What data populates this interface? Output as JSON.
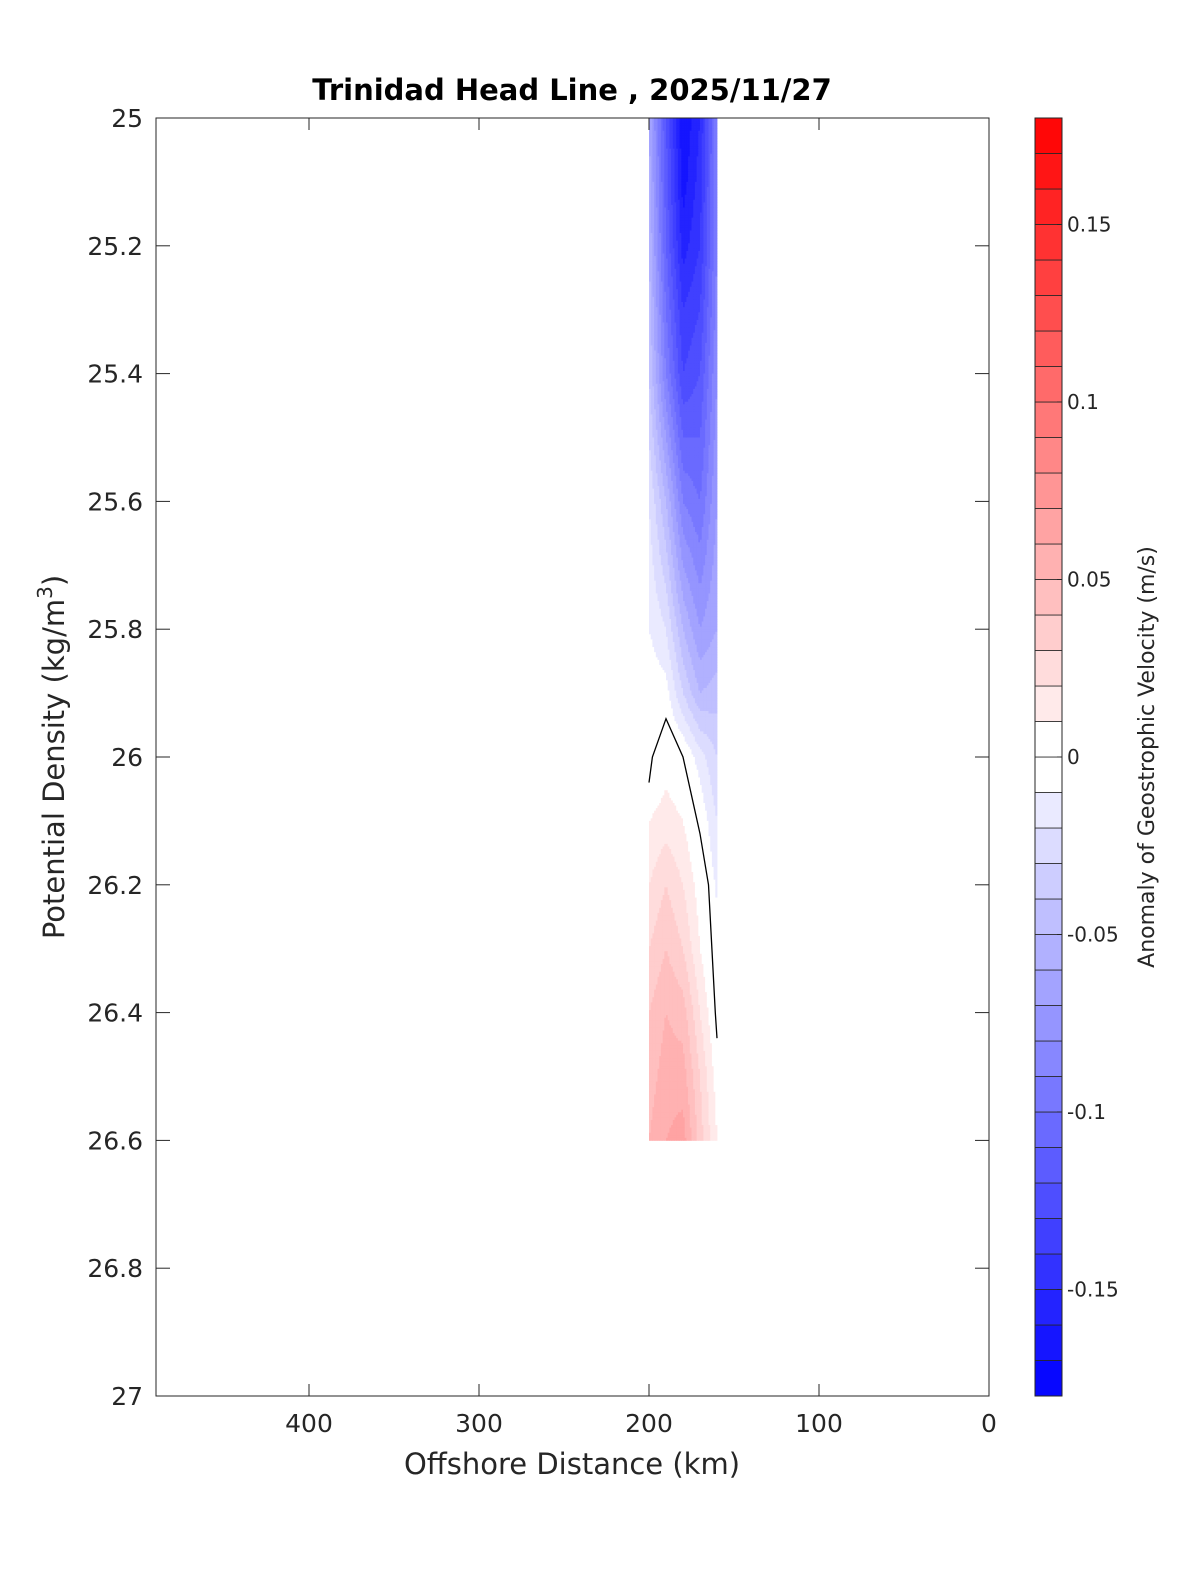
{
  "chart_data": {
    "type": "heatmap",
    "subtype": "filled-contour",
    "title": "Trinidad Head Line , 2025/11/27",
    "xlabel": "Offshore Distance (km)",
    "ylabel_main": "Potential Density (kg/m",
    "ylabel_sup": "3",
    "ylabel_close": ")",
    "xlim": [
      490,
      0
    ],
    "x_reversed": true,
    "ylim": [
      25,
      27
    ],
    "y_reversed": true,
    "xticks": [
      400,
      300,
      200,
      100,
      0
    ],
    "xtick_labels": [
      "400",
      "300",
      "200",
      "100",
      "0"
    ],
    "yticks": [
      25,
      25.2,
      25.4,
      25.6,
      25.8,
      26,
      26.2,
      26.4,
      26.6,
      26.8,
      27
    ],
    "ytick_labels": [
      "25",
      "25.2",
      "25.4",
      "25.6",
      "25.8",
      "26",
      "26.2",
      "26.4",
      "26.6",
      "26.8",
      "27"
    ],
    "grid": false,
    "x": [
      200,
      190,
      180,
      170,
      160
    ],
    "y": [
      25.0,
      25.1,
      25.2,
      25.3,
      25.4,
      25.5,
      25.6,
      25.7,
      25.8,
      25.9,
      26.0,
      26.1,
      26.2,
      26.3,
      26.4,
      26.5,
      26.6
    ],
    "z": [
      [
        -0.06,
        -0.12,
        -0.17,
        -0.15,
        -0.09
      ],
      [
        -0.055,
        -0.115,
        -0.165,
        -0.145,
        -0.09
      ],
      [
        -0.05,
        -0.11,
        -0.155,
        -0.14,
        -0.09
      ],
      [
        -0.045,
        -0.1,
        -0.14,
        -0.13,
        -0.085
      ],
      [
        -0.04,
        -0.09,
        -0.13,
        -0.12,
        -0.08
      ],
      [
        -0.03,
        -0.07,
        -0.11,
        -0.11,
        -0.075
      ],
      [
        -0.02,
        -0.05,
        -0.09,
        -0.1,
        -0.07
      ],
      [
        -0.015,
        -0.035,
        -0.07,
        -0.085,
        -0.065
      ],
      [
        -0.01,
        -0.02,
        -0.05,
        -0.07,
        -0.06
      ],
      [
        -0.002,
        -0.006,
        -0.03,
        -0.05,
        -0.045
      ],
      [
        -0.003,
        0.005,
        0.0,
        -0.015,
        -0.03
      ],
      [
        0.01,
        0.015,
        0.01,
        -0.002,
        -0.02
      ],
      [
        0.02,
        0.03,
        0.02,
        0.005,
        -0.012
      ],
      [
        0.03,
        0.04,
        0.03,
        0.01,
        -0.006
      ],
      [
        0.04,
        0.05,
        0.045,
        0.02,
        -0.001
      ],
      [
        0.045,
        0.055,
        0.055,
        0.03,
        0.005
      ],
      [
        0.05,
        0.06,
        0.065,
        0.035,
        0.01
      ]
    ],
    "zero_contour": [
      [
        200,
        26.04
      ],
      [
        198,
        26.0
      ],
      [
        190,
        25.94
      ],
      [
        180,
        26.0
      ],
      [
        175,
        26.06
      ],
      [
        170,
        26.12
      ],
      [
        165,
        26.2
      ],
      [
        163,
        26.3
      ],
      [
        161,
        26.4
      ],
      [
        160,
        26.44
      ]
    ],
    "colorbar": {
      "label": "Anomaly of Geostrophic Velocity (m/s)",
      "clim": [
        -0.18,
        0.18
      ],
      "level_step": 0.01,
      "ticks": [
        0.15,
        0.1,
        0.05,
        0,
        -0.05,
        -0.1,
        -0.15
      ],
      "tick_labels": [
        "0.15",
        "0.1",
        "0.05",
        "0",
        "-0.05",
        "-0.1",
        "-0.15"
      ],
      "colormap": "blue-white-red",
      "neg_color": "#0000ff",
      "pos_color": "#ff0000",
      "mid_color": "#ffffff"
    }
  }
}
